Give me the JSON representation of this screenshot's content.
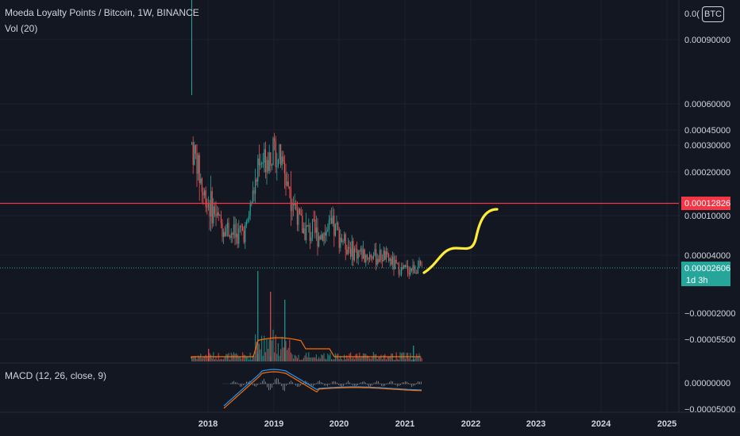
{
  "header": {
    "symbol_title": "Moeda Loyalty Points / Bitcoin, 1W, BINANCE",
    "volume_indicator": "Vol (20)",
    "macd_indicator": "MACD (12, 26, close, 9)",
    "currency": "BTC"
  },
  "colors": {
    "background": "#131722",
    "up": "#26a69a",
    "down": "#ef5350",
    "horizontal_line": "#f23645",
    "annotation": "#ffeb3b",
    "current_price": "#26a69a",
    "macd_line": "#2196f3",
    "signal_line": "#ff6d00",
    "volume_ma": "#ff6d00"
  },
  "chart_data": [
    {
      "type": "candlestick",
      "xlabel": "",
      "ylabel": "",
      "x_ticks": [
        "2018",
        "2019",
        "2020",
        "2021",
        "2022",
        "2023",
        "2024",
        "2025"
      ],
      "y_ticks": [
        "0.00090000",
        "0.00060000",
        "0.00045000",
        "0.00030000",
        "0.00020000",
        "0.00010000",
        "0.00004000",
        "−0.00002000",
        "−0.00005500"
      ],
      "y_scale": "nonlinear",
      "horizontal_line": {
        "value": "0.00012826"
      },
      "current_price": {
        "value": "0.00002606",
        "countdown": "1d 3h"
      },
      "trend": [
        {
          "date": "2017-09",
          "price": 0.0006
        },
        {
          "date": "2017-10",
          "price": 0.0003
        },
        {
          "date": "2017-12",
          "price": 0.00015
        },
        {
          "date": "2018-03",
          "price": 9e-05
        },
        {
          "date": "2018-06",
          "price": 7e-05
        },
        {
          "date": "2018-08",
          "price": 8e-05
        },
        {
          "date": "2018-10",
          "price": 0.0002
        },
        {
          "date": "2019-01",
          "price": 0.0003
        },
        {
          "date": "2019-04",
          "price": 0.00015
        },
        {
          "date": "2019-06",
          "price": 8e-05
        },
        {
          "date": "2019-09",
          "price": 7e-05
        },
        {
          "date": "2019-12",
          "price": 8e-05
        },
        {
          "date": "2020-03",
          "price": 5e-05
        },
        {
          "date": "2020-06",
          "price": 4e-05
        },
        {
          "date": "2020-09",
          "price": 4e-05
        },
        {
          "date": "2020-12",
          "price": 2.5e-05
        },
        {
          "date": "2021-03",
          "price": 2.6e-05
        }
      ]
    },
    {
      "type": "bar",
      "name": "Vol (20)"
    },
    {
      "type": "line",
      "name": "MACD (12, 26, close, 9)",
      "y_ticks": [
        "0.00000000",
        "−0.00005000"
      ]
    }
  ]
}
